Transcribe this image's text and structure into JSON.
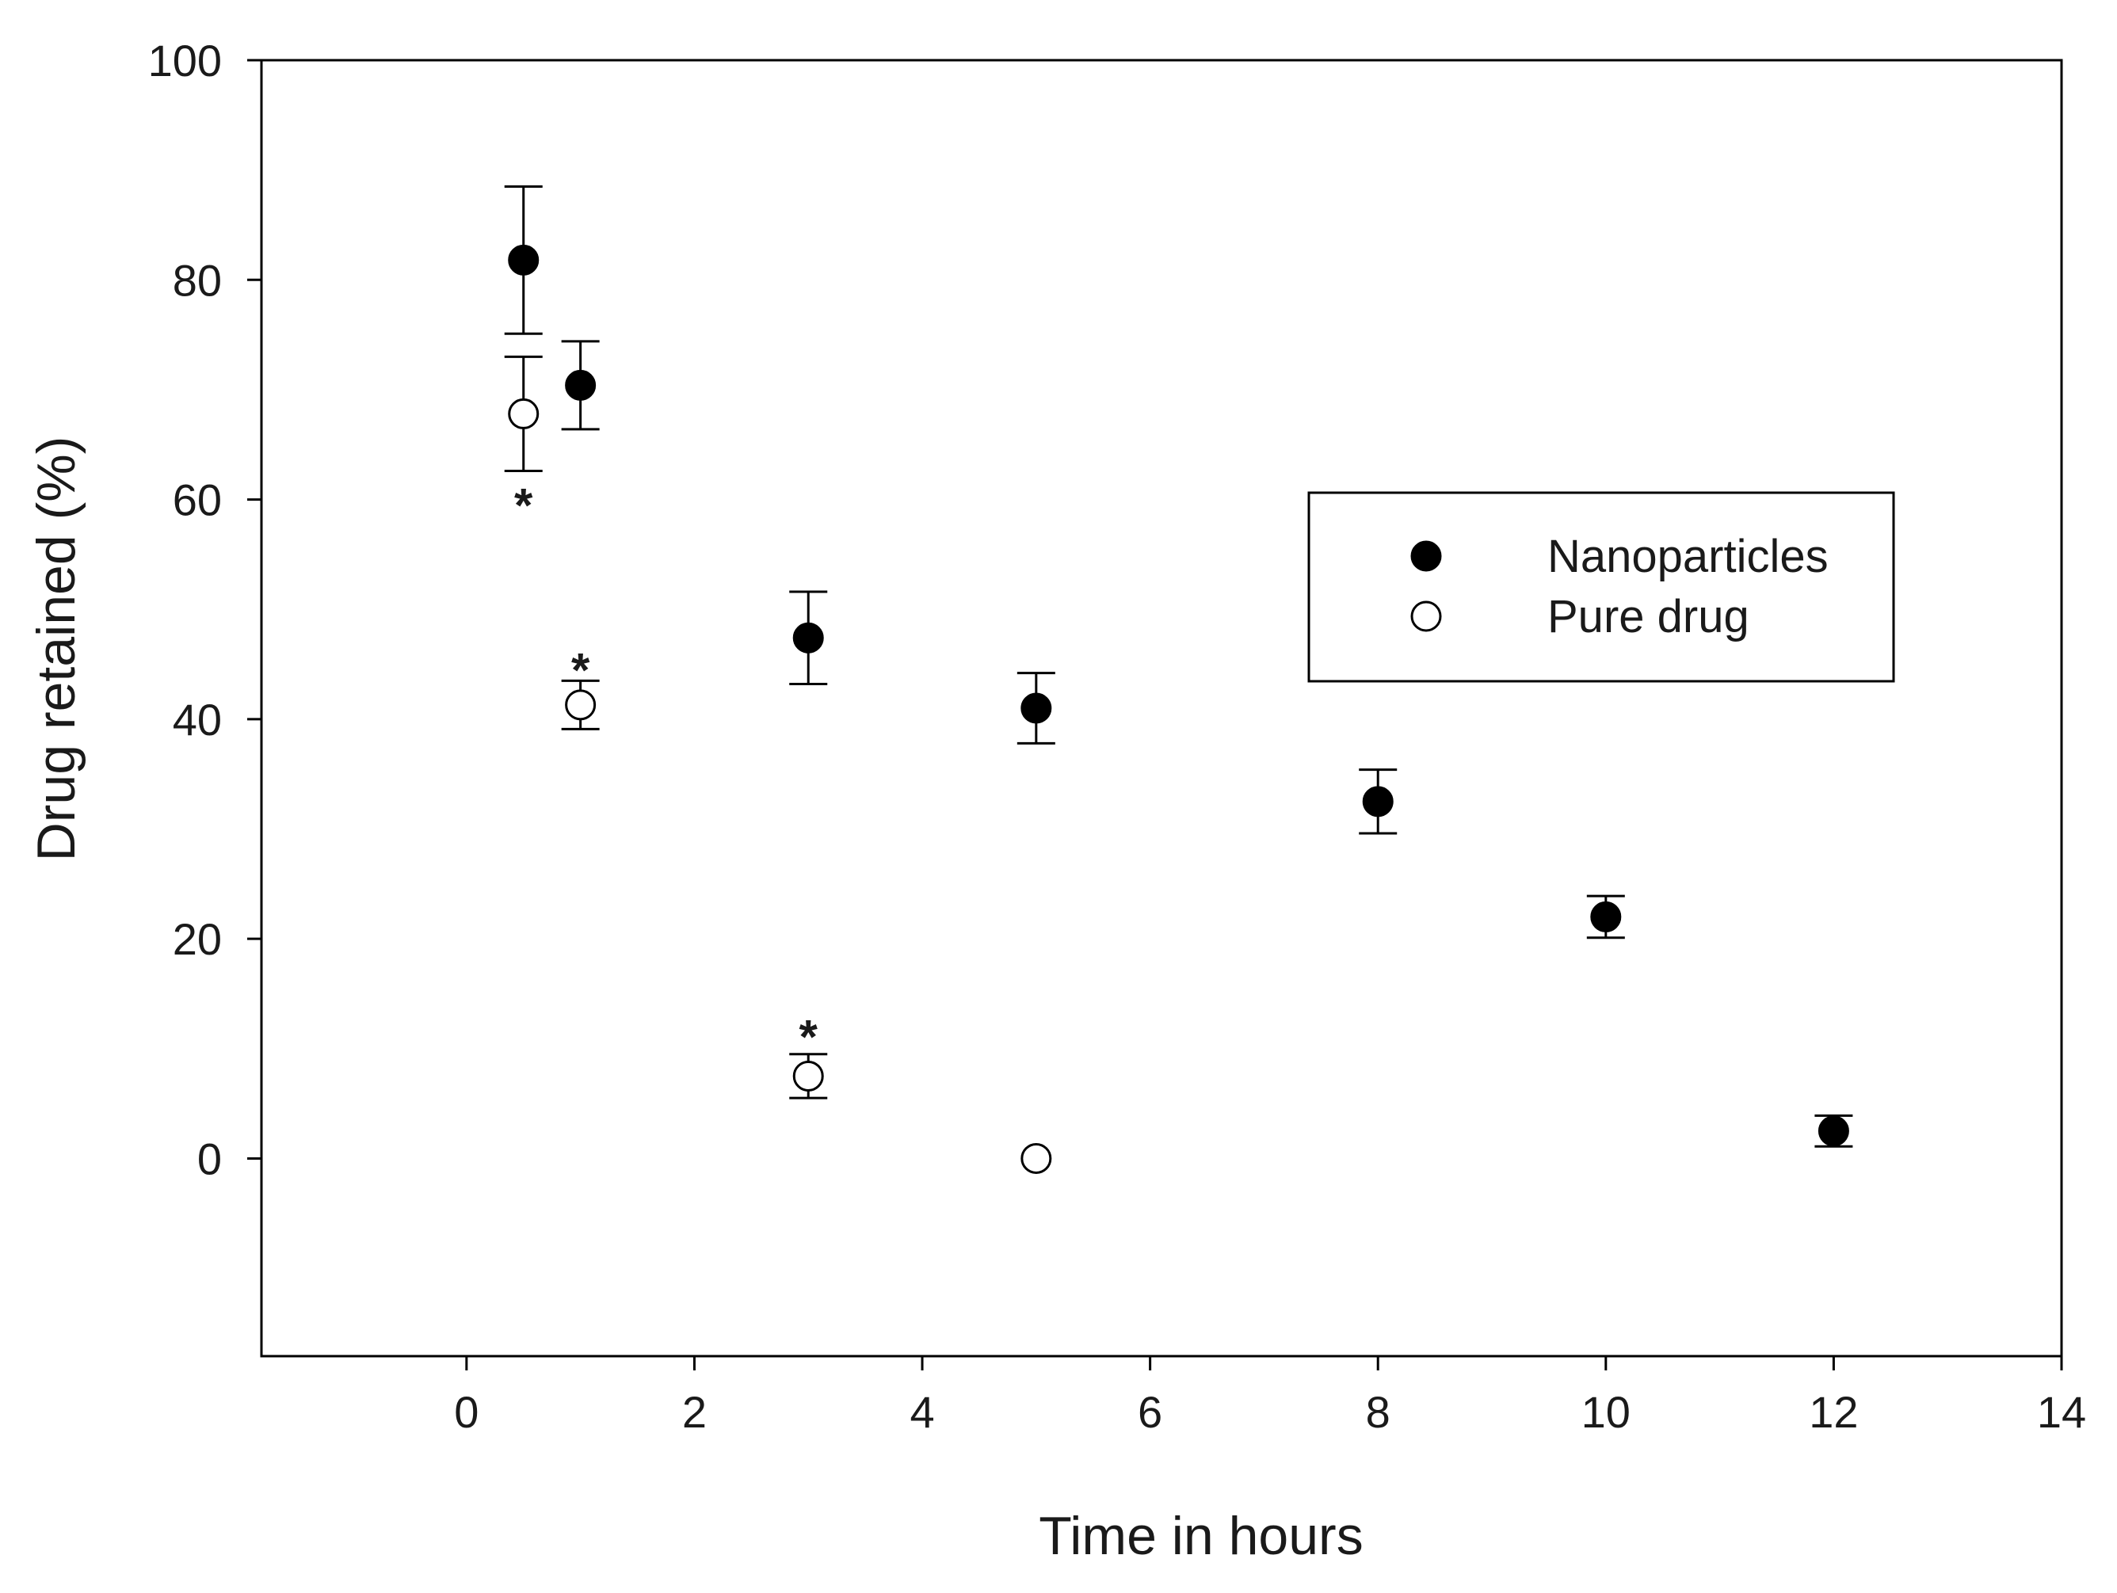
{
  "chart_data": {
    "type": "scatter",
    "title": "",
    "xlabel": "Time in hours",
    "ylabel": "Drug retained (%)",
    "xlim": [
      -1.8,
      14
    ],
    "ylim": [
      -18,
      100
    ],
    "xticks": [
      0,
      2,
      4,
      6,
      8,
      10,
      12,
      14
    ],
    "yticks": [
      0,
      20,
      40,
      60,
      80,
      100
    ],
    "grid": false,
    "legend_position": "upper-right",
    "series": [
      {
        "name": "Nanoparticles",
        "marker": "filled-circle",
        "color": "#000000",
        "points": [
          {
            "x": 0.5,
            "y": 81.8,
            "err": 6.7
          },
          {
            "x": 1,
            "y": 70.4,
            "err": 4.0
          },
          {
            "x": 3,
            "y": 47.4,
            "err": 4.2
          },
          {
            "x": 5,
            "y": 41.0,
            "err": 3.2
          },
          {
            "x": 8,
            "y": 32.5,
            "err": 2.9
          },
          {
            "x": 10,
            "y": 22.0,
            "err": 1.9
          },
          {
            "x": 12,
            "y": 2.5,
            "err": 1.4
          }
        ]
      },
      {
        "name": "Pure drug",
        "marker": "open-circle",
        "color": "#000000",
        "points": [
          {
            "x": 0.5,
            "y": 67.8,
            "err": 5.2
          },
          {
            "x": 1,
            "y": 41.3,
            "err": 2.2
          },
          {
            "x": 3,
            "y": 7.5,
            "err": 2.0
          },
          {
            "x": 5,
            "y": 0.0,
            "err": 0
          }
        ]
      }
    ],
    "annotations": [
      {
        "text": "*",
        "x": 0.5,
        "y": 60.0
      },
      {
        "text": "*",
        "x": 1,
        "y": 45.0
      },
      {
        "text": "*",
        "x": 3,
        "y": 11.6
      }
    ]
  }
}
